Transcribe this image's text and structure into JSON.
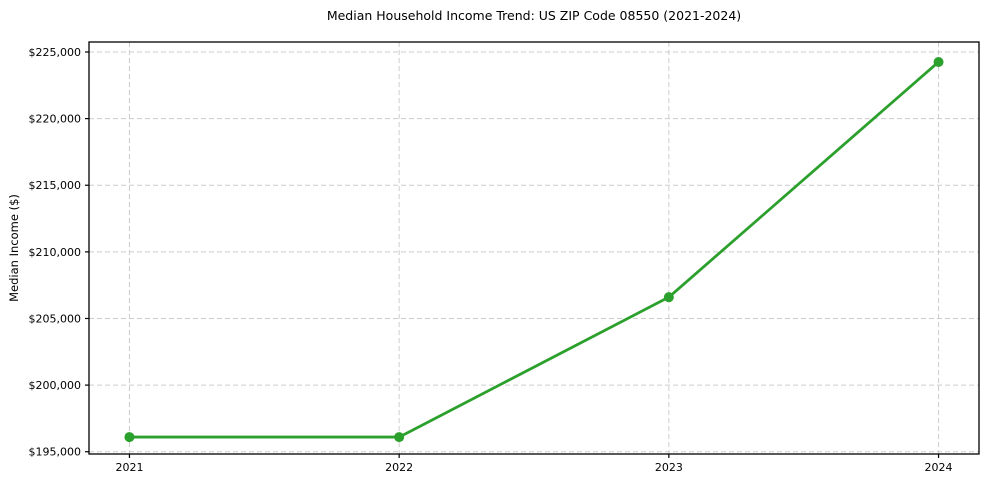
{
  "chart_data": {
    "type": "line",
    "title": "Median Household Income Trend: US ZIP Code 08550 (2021-2024)",
    "xlabel": "",
    "ylabel": "Median Income ($)",
    "categories": [
      2021,
      2022,
      2023,
      2024
    ],
    "series": [
      {
        "name": "median-household-income",
        "values": [
          196100,
          196100,
          206600,
          224250
        ],
        "color": "#2ca02c",
        "marker": "circle"
      }
    ],
    "x_tick_labels": [
      "2021",
      "2022",
      "2023",
      "2024"
    ],
    "y_ticks": [
      195000,
      200000,
      205000,
      210000,
      215000,
      220000,
      225000
    ],
    "y_tick_labels": [
      "$195,000",
      "$200,000",
      "$205,000",
      "$210,000",
      "$215,000",
      "$220,000",
      "$225,000"
    ],
    "xlim": [
      2020.85,
      2024.15
    ],
    "ylim": [
      194830,
      225750
    ],
    "grid": {
      "visible": true,
      "style": "dashed",
      "color": "#cccccc"
    },
    "legend_position": "none",
    "axes": {
      "spine_color": "#000000",
      "tick_color": "#000000",
      "label_color": "#000000"
    }
  }
}
